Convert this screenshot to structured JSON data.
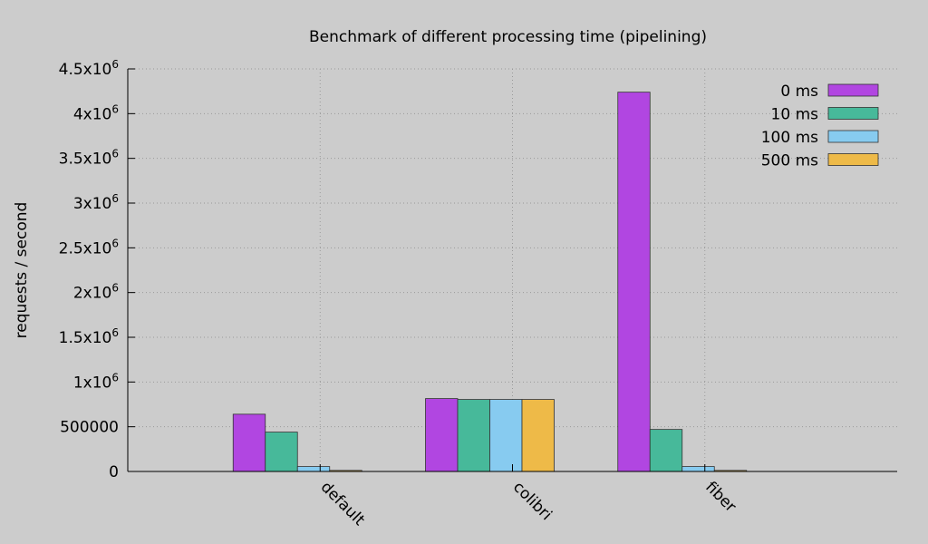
{
  "chart_data": {
    "type": "bar",
    "title": "Benchmark of different processing time (pipelining)",
    "xlabel": "",
    "ylabel": "requests / second",
    "ylim": [
      0,
      4500000
    ],
    "yticks": [
      {
        "value": 0,
        "base": "0",
        "exp": ""
      },
      {
        "value": 500000,
        "base": "500000",
        "exp": ""
      },
      {
        "value": 1000000,
        "base": "1x10",
        "exp": "6"
      },
      {
        "value": 1500000,
        "base": "1.5x10",
        "exp": "6"
      },
      {
        "value": 2000000,
        "base": "2x10",
        "exp": "6"
      },
      {
        "value": 2500000,
        "base": "2.5x10",
        "exp": "6"
      },
      {
        "value": 3000000,
        "base": "3x10",
        "exp": "6"
      },
      {
        "value": 3500000,
        "base": "3.5x10",
        "exp": "6"
      },
      {
        "value": 4000000,
        "base": "4x10",
        "exp": "6"
      },
      {
        "value": 4500000,
        "base": "4.5x10",
        "exp": "6"
      }
    ],
    "categories": [
      "default",
      "colibri",
      "fiber"
    ],
    "series": [
      {
        "name": "0 ms",
        "color": "#b146e1",
        "values": [
          640000,
          815000,
          4240000
        ]
      },
      {
        "name": "10 ms",
        "color": "#47b99a",
        "values": [
          440000,
          805000,
          470000
        ]
      },
      {
        "name": "100 ms",
        "color": "#87cbf0",
        "values": [
          55000,
          805000,
          55000
        ]
      },
      {
        "name": "500 ms",
        "color": "#eeba48",
        "values": [
          12000,
          805000,
          12000
        ]
      }
    ],
    "grid": true,
    "legend_position": "top-right"
  }
}
